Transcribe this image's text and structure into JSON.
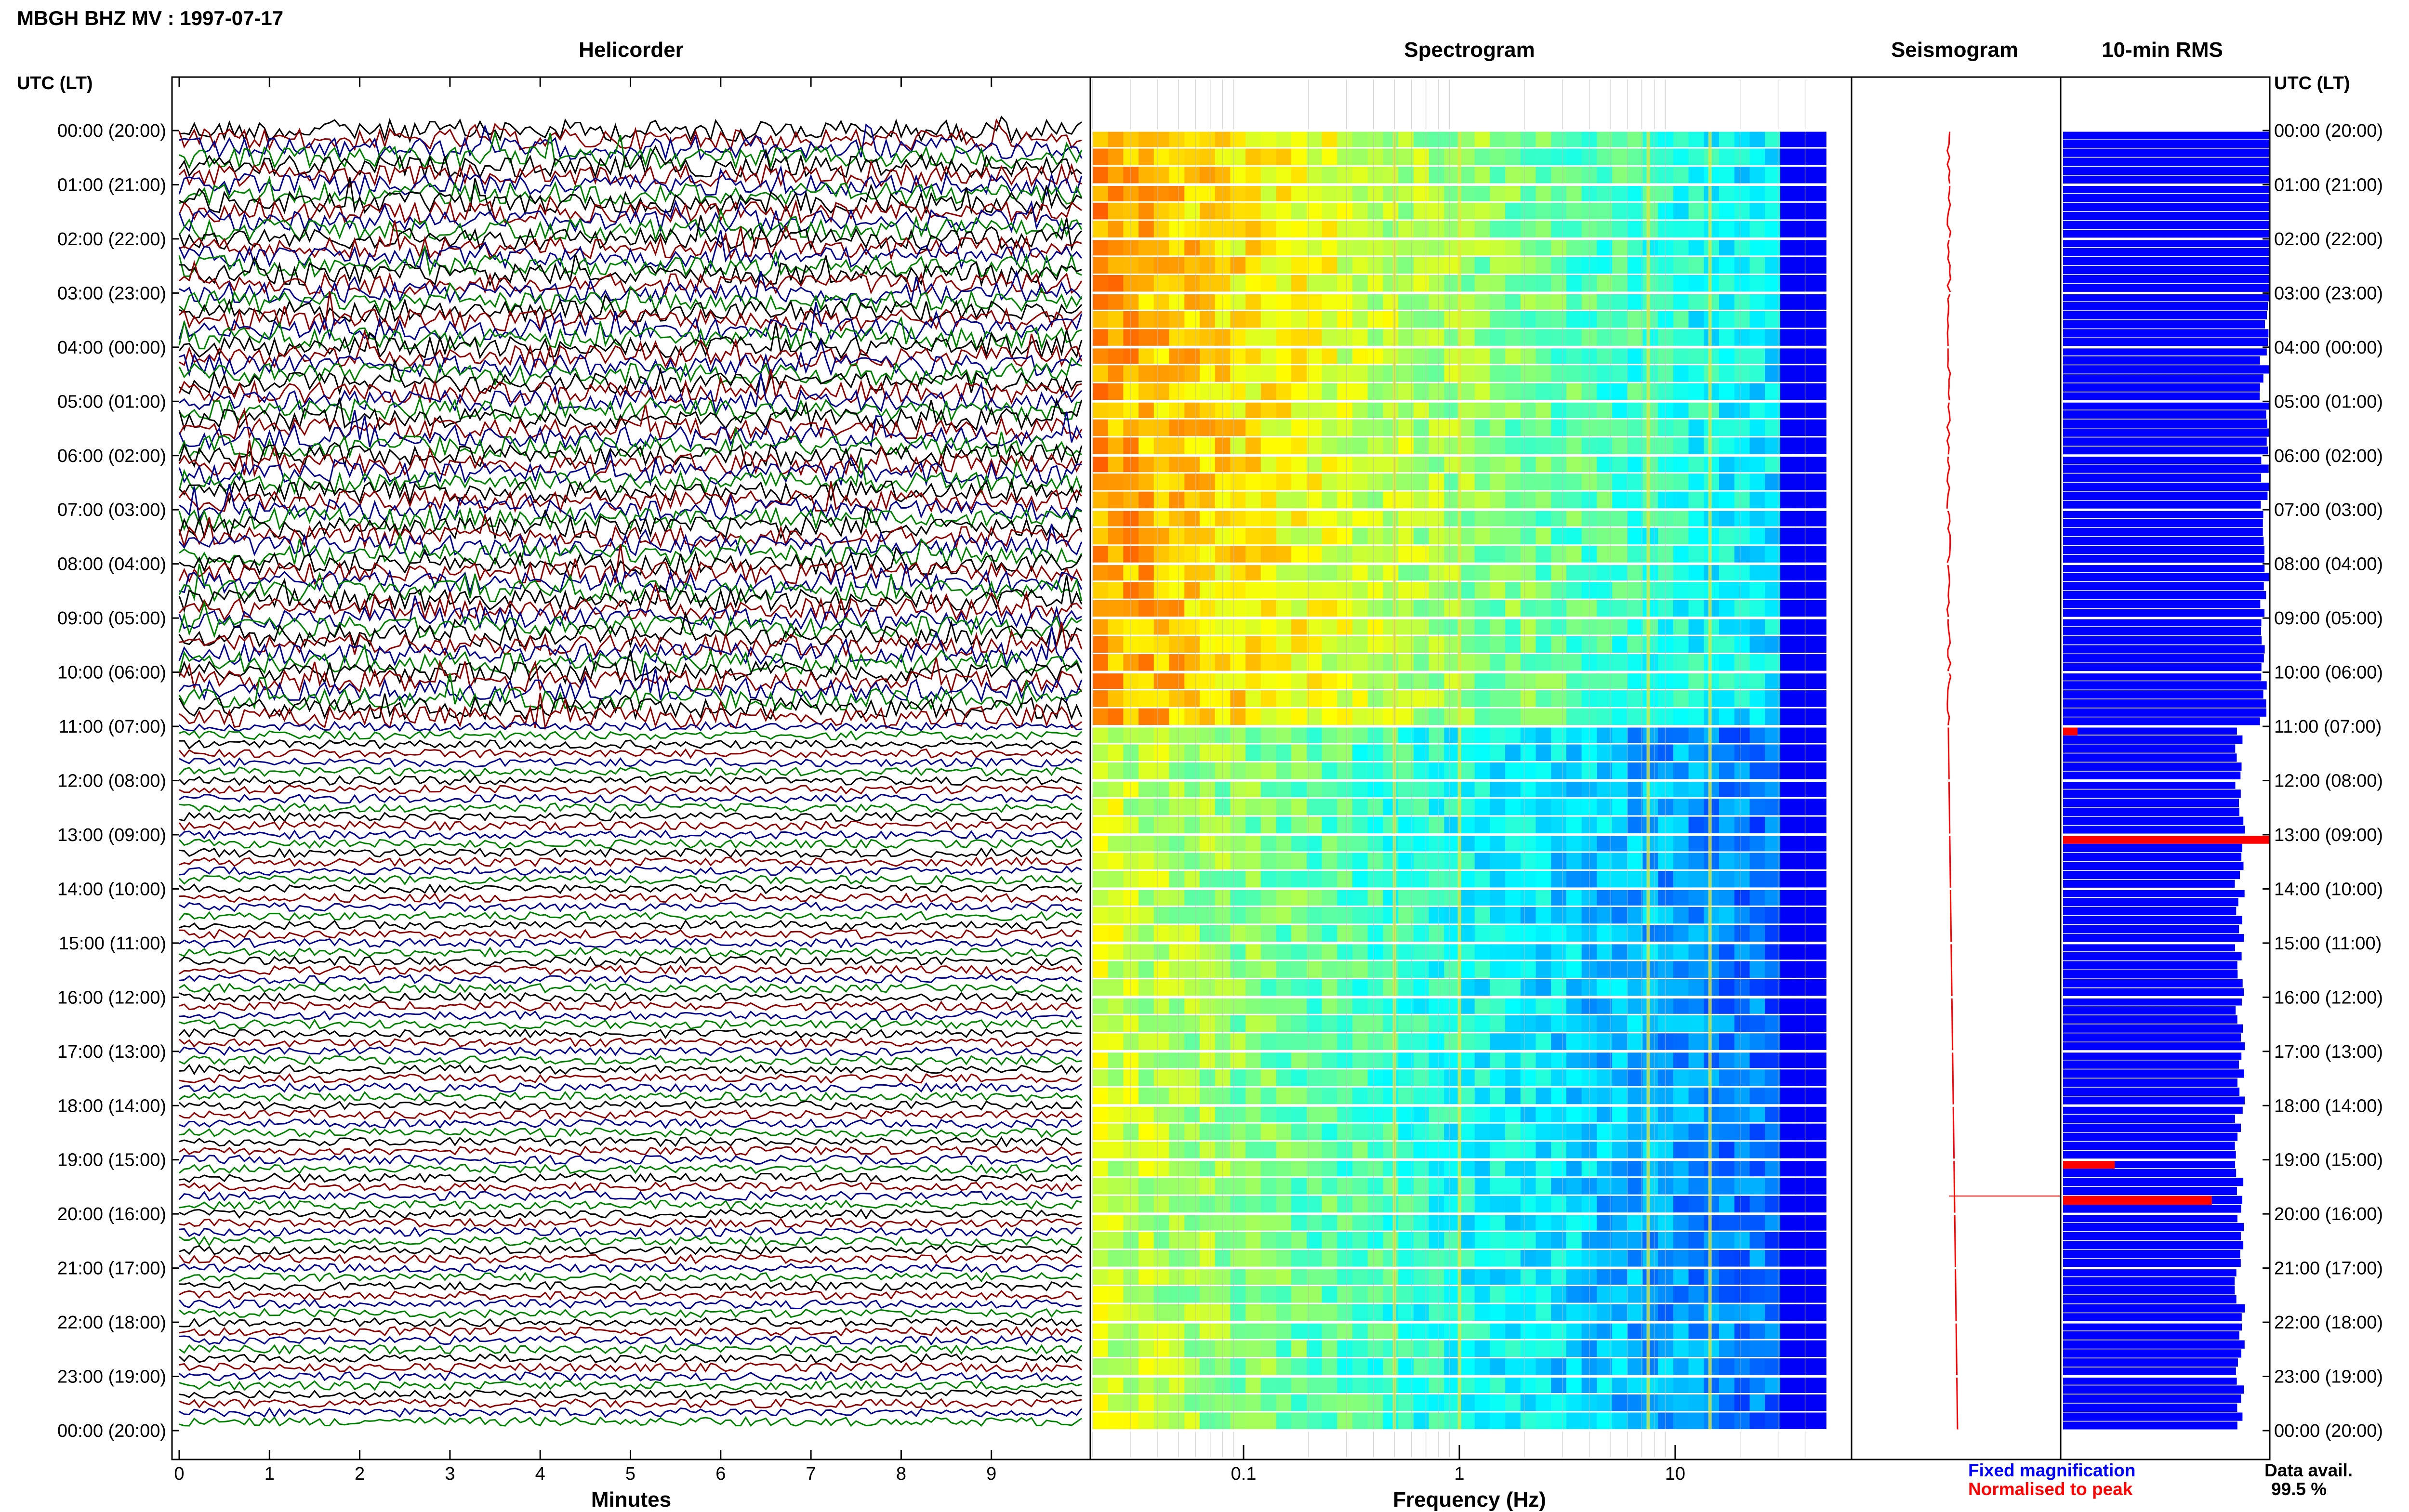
{
  "header": {
    "title": "MBGH BHZ MV : 1997-07-17"
  },
  "panels": {
    "helicorder": "Helicorder",
    "spectrogram": "Spectrogram",
    "seismogram": "Seismogram",
    "rms": "10-min RMS"
  },
  "axis": {
    "time_label_left": "UTC (LT)",
    "time_label_right": "UTC (LT)",
    "minutes_label": "Minutes",
    "frequency_label": "Frequency (Hz)"
  },
  "legend": {
    "fixed": "Fixed magnification",
    "normalised": "Normalised to peak",
    "data_avail_label": "Data avail.",
    "data_avail_value": "99.5 %"
  },
  "colors": {
    "fixed": "#0000ff",
    "normalised": "#ff0000",
    "trace_cycle": [
      "#000000",
      "#8b0000",
      "#00008b",
      "#008000"
    ]
  },
  "chart_data": [
    {
      "type": "line",
      "title": "Helicorder",
      "xlabel": "Minutes",
      "xticks": [
        "0",
        "1",
        "2",
        "3",
        "4",
        "5",
        "6",
        "7",
        "8",
        "9"
      ],
      "xlim": [
        0,
        10
      ],
      "ylabel": "UTC (LT)",
      "time_ticks": [
        "00:00 (20:00)",
        "01:00 (21:00)",
        "02:00 (22:00)",
        "03:00 (23:00)",
        "04:00 (00:00)",
        "05:00 (01:00)",
        "06:00 (02:00)",
        "07:00 (03:00)",
        "08:00 (04:00)",
        "09:00 (05:00)",
        "10:00 (06:00)",
        "11:00 (07:00)",
        "12:00 (08:00)",
        "13:00 (09:00)",
        "14:00 (10:00)",
        "15:00 (11:00)",
        "16:00 (12:00)",
        "17:00 (13:00)",
        "18:00 (14:00)",
        "19:00 (15:00)",
        "20:00 (16:00)",
        "21:00 (17:00)",
        "22:00 (18:00)",
        "23:00 (19:00)",
        "00:00 (20:00)"
      ],
      "rows": 144,
      "minutes_per_row": 10,
      "series_colors": [
        "black",
        "dark red",
        "dark blue",
        "green"
      ]
    },
    {
      "type": "heatmap",
      "title": "Spectrogram",
      "xlabel": "Frequency (Hz)",
      "xscale": "log",
      "xticks": [
        "0.1",
        "1",
        "10"
      ],
      "xlim": [
        0.02,
        50
      ],
      "colormap": "jet",
      "spectral_lines_hz": [
        0.5,
        1.0,
        7.5,
        14.5
      ],
      "regime_change_utc": "11:00"
    },
    {
      "type": "line",
      "title": "Seismogram",
      "series": [
        {
          "name": "Fixed magnification",
          "color": "blue"
        },
        {
          "name": "Normalised to peak",
          "color": "red"
        }
      ]
    },
    {
      "type": "bar",
      "title": "10-min RMS",
      "orientation": "horizontal",
      "bins": 144,
      "level_00_to_11_utc": 1.0,
      "level_11_to_24_utc": 0.88,
      "peak_bins_utc": [
        "11:00",
        "13:00",
        "19:00",
        "19:40"
      ]
    }
  ]
}
